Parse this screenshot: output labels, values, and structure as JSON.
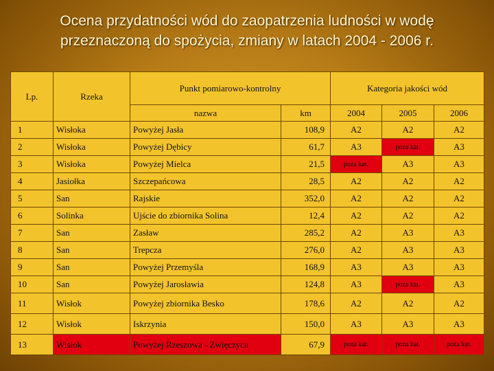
{
  "title": {
    "line1": "Ocena przydatności wód do zaopatrzenia ludności w wodę",
    "line2": "przeznaczoną do spożycia, zmiany w latach 2004 - 2006 r."
  },
  "headers": {
    "lp": "Lp.",
    "rzeka": "Rzeka",
    "punkt": "Punkt pomiarowo-kontrolny",
    "kategoria": "Kategoria jakości wód",
    "nazwa": "nazwa",
    "km": "km",
    "y2004": "2004",
    "y2005": "2005",
    "y2006": "2006"
  },
  "colors": {
    "table_bg": "#f3c32c",
    "poza_kat_highlight": "#e00010",
    "title_text": "#fff6cc"
  },
  "rows": [
    {
      "lp": "1",
      "rzeka": "Wisłoka",
      "nazwa": "Powyżej Jasła",
      "km": "108,9",
      "c2004": "A2",
      "c2005": "A2",
      "c2006": "A2"
    },
    {
      "lp": "2",
      "rzeka": "Wisłoka",
      "nazwa": "Powyżej Dębicy",
      "km": "61,7",
      "c2004": "A3",
      "c2005": "poza kat.",
      "c2006": "A3"
    },
    {
      "lp": "3",
      "rzeka": "Wisłoka",
      "nazwa": "Powyżej Mielca",
      "km": "21,5",
      "c2004": "poza kat.",
      "c2005": "A3",
      "c2006": "A3"
    },
    {
      "lp": "4",
      "rzeka": "Jasiołka",
      "nazwa": "Szczepańcowa",
      "km": "28,5",
      "c2004": "A2",
      "c2005": "A2",
      "c2006": "A2"
    },
    {
      "lp": "5",
      "rzeka": "San",
      "nazwa": "Rajskie",
      "km": "352,0",
      "c2004": "A2",
      "c2005": "A2",
      "c2006": "A2"
    },
    {
      "lp": "6",
      "rzeka": "Solinka",
      "nazwa": "Ujście do zbiornika Solina",
      "km": "12,4",
      "c2004": "A2",
      "c2005": "A2",
      "c2006": "A2"
    },
    {
      "lp": "7",
      "rzeka": "San",
      "nazwa": "Zasław",
      "km": "285,2",
      "c2004": "A2",
      "c2005": "A3",
      "c2006": "A3"
    },
    {
      "lp": "8",
      "rzeka": "San",
      "nazwa": "Trepcza",
      "km": "276,0",
      "c2004": "A2",
      "c2005": "A3",
      "c2006": "A3"
    },
    {
      "lp": "9",
      "rzeka": "San",
      "nazwa": "Powyżej Przemyśla",
      "km": "168,9",
      "c2004": "A3",
      "c2005": "A3",
      "c2006": "A3"
    },
    {
      "lp": "10",
      "rzeka": "San",
      "nazwa": "Powyżej Jarosławia",
      "km": "124,8",
      "c2004": "A3",
      "c2005": "poza kat.",
      "c2006": "A3"
    },
    {
      "lp": "11",
      "rzeka": "Wisłok",
      "nazwa": "Powyżej zbiornika Besko",
      "km": "178,6",
      "c2004": "A2",
      "c2005": "A2",
      "c2006": "A2"
    },
    {
      "lp": "12",
      "rzeka": "Wisłok",
      "nazwa": "Iskrzynia",
      "km": "150,0",
      "c2004": "A3",
      "c2005": "A3",
      "c2006": "A3"
    },
    {
      "lp": "13",
      "rzeka": "Wisłok",
      "nazwa": "Powyżej Rzeszowa - Zwięczyca",
      "km": "67,9",
      "c2004": "poza kat.",
      "c2005": "poza kat.",
      "c2006": "poza kat."
    }
  ]
}
